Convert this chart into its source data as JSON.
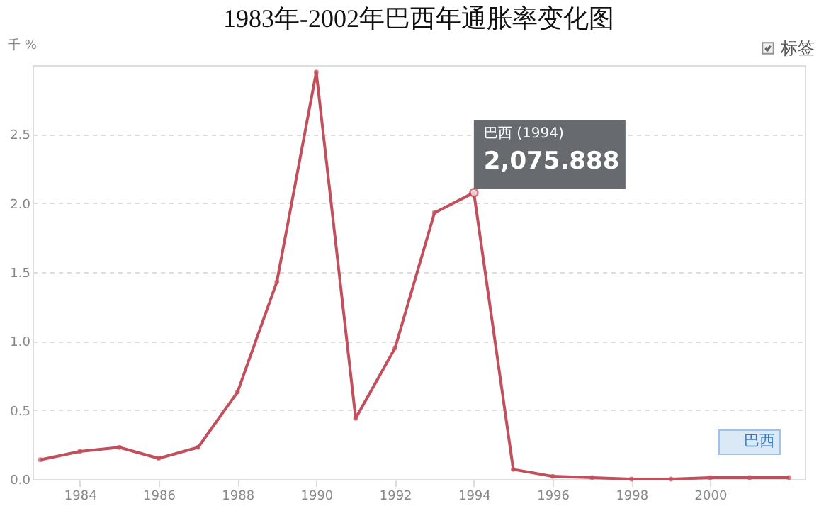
{
  "chart_data": {
    "type": "line",
    "title": "1983年-2002年巴西年通胀率变化图",
    "ylabel": "千 %",
    "x": [
      1983,
      1984,
      1985,
      1986,
      1987,
      1988,
      1989,
      1990,
      1991,
      1992,
      1993,
      1994,
      1995,
      1996,
      1997,
      1998,
      1999,
      2000,
      2001,
      2002
    ],
    "series": [
      {
        "name": "巴西",
        "color": "#c2505c",
        "values": [
          0.14,
          0.2,
          0.23,
          0.15,
          0.23,
          0.63,
          1.43,
          2.95,
          0.44,
          0.95,
          1.93,
          2.075888,
          0.07,
          0.02,
          0.01,
          0.0,
          0.0,
          0.01,
          0.01,
          0.01
        ]
      }
    ],
    "xlim": [
      1982.8,
      2002.4
    ],
    "xticks": [
      1984,
      1986,
      1988,
      1990,
      1992,
      1994,
      1996,
      1998,
      2000
    ],
    "ylim": [
      0,
      3.0
    ],
    "yticks": [
      {
        "value": 0,
        "label": "0.0"
      },
      0.5,
      {
        "value": 1,
        "label": "1.0"
      },
      1.5,
      {
        "value": 2,
        "label": "2.0"
      },
      2.5
    ],
    "annotations": [
      "巴西 (1994)",
      {
        "text": "2,075.888",
        "x": 1994,
        "y": 2.075888
      },
      "标签"
    ],
    "grid": "y",
    "legend": "bottom right",
    "marker": "circle",
    "line_style": "solid"
  }
}
